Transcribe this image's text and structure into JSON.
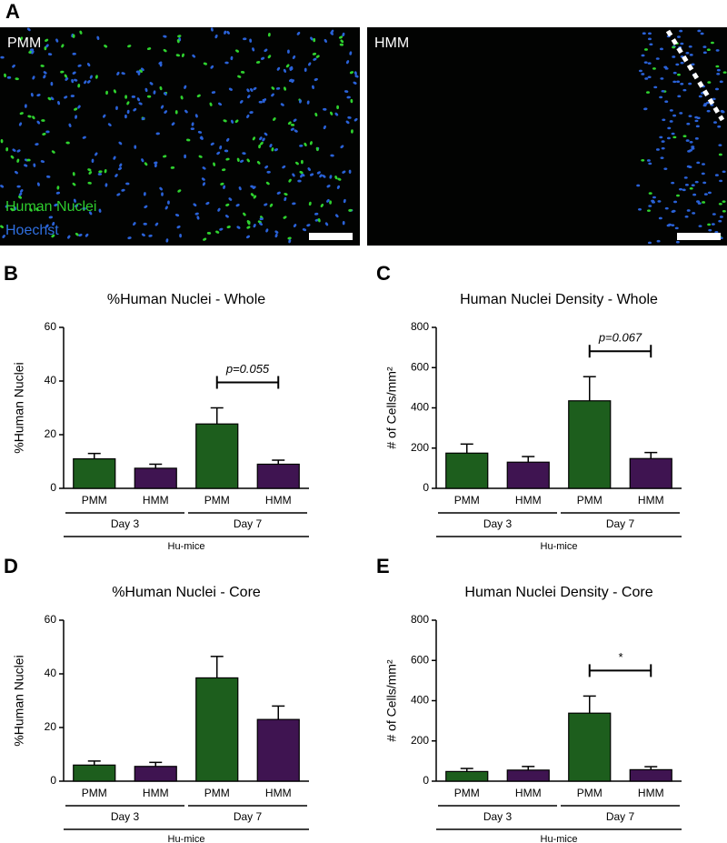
{
  "panel_a": {
    "letter": "A",
    "images": [
      {
        "label": "PMM"
      },
      {
        "label": "HMM"
      }
    ],
    "legend": [
      "Human Nuclei",
      "Hoechst"
    ]
  },
  "chart_data": [
    {
      "type": "bar",
      "panel": "B",
      "title": "%Human Nuclei - Whole",
      "ylabel": "%Human Nuclei",
      "categories": [
        "PMM",
        "HMM",
        "PMM",
        "HMM"
      ],
      "groups": [
        "Day 3",
        "Day 7"
      ],
      "group_label": "Hu-mice",
      "values": [
        11,
        7.5,
        24,
        9
      ],
      "errors": [
        2,
        1.5,
        6,
        1.5
      ],
      "colors": [
        "#1d5e1d",
        "#3f1451",
        "#1d5e1d",
        "#3f1451"
      ],
      "ylim": [
        0,
        60
      ],
      "yticks": [
        0,
        20,
        40,
        60
      ],
      "annotation": "p=0.055"
    },
    {
      "type": "bar",
      "panel": "C",
      "title": "Human Nuclei Density - Whole",
      "ylabel": "# of Cells/mm²",
      "categories": [
        "PMM",
        "HMM",
        "PMM",
        "HMM"
      ],
      "groups": [
        "Day 3",
        "Day 7"
      ],
      "group_label": "Hu-mice",
      "values": [
        175,
        130,
        435,
        148
      ],
      "errors": [
        45,
        28,
        120,
        30
      ],
      "colors": [
        "#1d5e1d",
        "#3f1451",
        "#1d5e1d",
        "#3f1451"
      ],
      "ylim": [
        0,
        800
      ],
      "yticks": [
        0,
        200,
        400,
        600,
        800
      ],
      "annotation": "p=0.067"
    },
    {
      "type": "bar",
      "panel": "D",
      "title": "%Human Nuclei - Core",
      "ylabel": "%Human Nuclei",
      "categories": [
        "PMM",
        "HMM",
        "PMM",
        "HMM"
      ],
      "groups": [
        "Day 3",
        "Day 7"
      ],
      "group_label": "Hu-mice",
      "values": [
        6,
        5.5,
        38.5,
        23
      ],
      "errors": [
        1.5,
        1.5,
        8,
        5
      ],
      "colors": [
        "#1d5e1d",
        "#3f1451",
        "#1d5e1d",
        "#3f1451"
      ],
      "ylim": [
        0,
        60
      ],
      "yticks": [
        0,
        20,
        40,
        60
      ]
    },
    {
      "type": "bar",
      "panel": "E",
      "title": "Human Nuclei  Density - Core",
      "ylabel": "# of Cells/mm²",
      "categories": [
        "PMM",
        "HMM",
        "PMM",
        "HMM"
      ],
      "groups": [
        "Day 3",
        "Day 7"
      ],
      "group_label": "Hu-mice",
      "values": [
        48,
        55,
        338,
        57
      ],
      "errors": [
        15,
        18,
        85,
        15
      ],
      "colors": [
        "#1d5e1d",
        "#3f1451",
        "#1d5e1d",
        "#3f1451"
      ],
      "ylim": [
        0,
        800
      ],
      "yticks": [
        0,
        200,
        400,
        600,
        800
      ],
      "annotation": "*"
    }
  ]
}
